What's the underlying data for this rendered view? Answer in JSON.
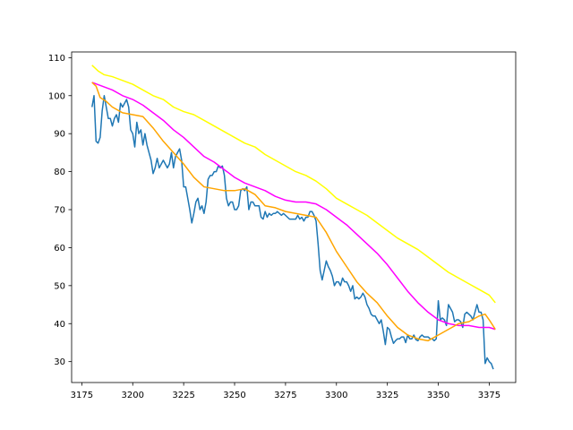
{
  "chart_data": {
    "type": "line",
    "title": "",
    "xlabel": "",
    "ylabel": "",
    "xlim": [
      3170,
      3388
    ],
    "ylim": [
      24.5,
      111.5
    ],
    "grid": false,
    "legend": "none",
    "x_ticks": [
      3175,
      3200,
      3225,
      3250,
      3275,
      3300,
      3325,
      3350,
      3375
    ],
    "y_ticks": [
      30,
      40,
      50,
      60,
      70,
      80,
      90,
      100,
      110
    ],
    "series": [
      {
        "color": "#1f77b4",
        "points": [
          [
            3180,
            97
          ],
          [
            3181,
            100
          ],
          [
            3182,
            88
          ],
          [
            3183,
            87.5
          ],
          [
            3184,
            89
          ],
          [
            3185,
            96
          ],
          [
            3186,
            100
          ],
          [
            3187,
            97
          ],
          [
            3188,
            94
          ],
          [
            3189,
            94
          ],
          [
            3190,
            92
          ],
          [
            3191,
            94
          ],
          [
            3192,
            95
          ],
          [
            3193,
            93
          ],
          [
            3194,
            98
          ],
          [
            3195,
            97
          ],
          [
            3196,
            98
          ],
          [
            3197,
            99
          ],
          [
            3198,
            97
          ],
          [
            3199,
            91
          ],
          [
            3200,
            90
          ],
          [
            3201,
            86.5
          ],
          [
            3202,
            93
          ],
          [
            3203,
            90
          ],
          [
            3204,
            91
          ],
          [
            3205,
            87
          ],
          [
            3206,
            90
          ],
          [
            3207,
            87
          ],
          [
            3208,
            85
          ],
          [
            3209,
            83
          ],
          [
            3210,
            79.5
          ],
          [
            3211,
            81
          ],
          [
            3212,
            83.5
          ],
          [
            3213,
            81
          ],
          [
            3214,
            82
          ],
          [
            3215,
            83
          ],
          [
            3216,
            82
          ],
          [
            3217,
            81
          ],
          [
            3218,
            82
          ],
          [
            3219,
            85
          ],
          [
            3220,
            81
          ],
          [
            3221,
            84
          ],
          [
            3222,
            85
          ],
          [
            3223,
            86
          ],
          [
            3224,
            83
          ],
          [
            3225,
            76
          ],
          [
            3226,
            76
          ],
          [
            3227,
            73
          ],
          [
            3228,
            70
          ],
          [
            3229,
            66.5
          ],
          [
            3230,
            69
          ],
          [
            3231,
            72
          ],
          [
            3232,
            73
          ],
          [
            3233,
            70
          ],
          [
            3234,
            71
          ],
          [
            3235,
            69
          ],
          [
            3236,
            72
          ],
          [
            3237,
            78
          ],
          [
            3238,
            79
          ],
          [
            3239,
            79
          ],
          [
            3240,
            80
          ],
          [
            3241,
            80
          ],
          [
            3242,
            81.5
          ],
          [
            3243,
            81
          ],
          [
            3244,
            81.5
          ],
          [
            3245,
            79
          ],
          [
            3246,
            73
          ],
          [
            3247,
            71
          ],
          [
            3248,
            72
          ],
          [
            3249,
            72
          ],
          [
            3250,
            70
          ],
          [
            3251,
            70
          ],
          [
            3252,
            71
          ],
          [
            3253,
            75
          ],
          [
            3254,
            75.5
          ],
          [
            3255,
            75
          ],
          [
            3256,
            76
          ],
          [
            3257,
            70
          ],
          [
            3258,
            72
          ],
          [
            3259,
            72
          ],
          [
            3260,
            71
          ],
          [
            3261,
            71
          ],
          [
            3262,
            71
          ],
          [
            3263,
            68
          ],
          [
            3264,
            67.5
          ],
          [
            3265,
            69.5
          ],
          [
            3266,
            68
          ],
          [
            3267,
            69
          ],
          [
            3268,
            68.5
          ],
          [
            3269,
            69
          ],
          [
            3270,
            69
          ],
          [
            3271,
            69.5
          ],
          [
            3272,
            69
          ],
          [
            3273,
            68.5
          ],
          [
            3274,
            69
          ],
          [
            3275,
            68.5
          ],
          [
            3276,
            68
          ],
          [
            3277,
            67.5
          ],
          [
            3278,
            67.5
          ],
          [
            3279,
            67.5
          ],
          [
            3280,
            67.5
          ],
          [
            3281,
            68.5
          ],
          [
            3282,
            67.5
          ],
          [
            3283,
            68
          ],
          [
            3284,
            67
          ],
          [
            3285,
            68
          ],
          [
            3286,
            68
          ],
          [
            3287,
            69.5
          ],
          [
            3288,
            69.5
          ],
          [
            3289,
            68.5
          ],
          [
            3290,
            67
          ],
          [
            3291,
            61
          ],
          [
            3292,
            54
          ],
          [
            3293,
            51.5
          ],
          [
            3294,
            54
          ],
          [
            3295,
            56.5
          ],
          [
            3296,
            55
          ],
          [
            3297,
            54
          ],
          [
            3298,
            52.5
          ],
          [
            3299,
            50
          ],
          [
            3300,
            51
          ],
          [
            3301,
            51
          ],
          [
            3302,
            50
          ],
          [
            3303,
            52
          ],
          [
            3304,
            51
          ],
          [
            3305,
            51
          ],
          [
            3306,
            50
          ],
          [
            3307,
            48.5
          ],
          [
            3308,
            50
          ],
          [
            3309,
            46.5
          ],
          [
            3310,
            47
          ],
          [
            3311,
            46.5
          ],
          [
            3312,
            47
          ],
          [
            3313,
            48
          ],
          [
            3314,
            47
          ],
          [
            3315,
            45
          ],
          [
            3316,
            44
          ],
          [
            3317,
            42.5
          ],
          [
            3318,
            42
          ],
          [
            3319,
            42
          ],
          [
            3320,
            41
          ],
          [
            3321,
            40
          ],
          [
            3322,
            41
          ],
          [
            3323,
            38
          ],
          [
            3324,
            34.5
          ],
          [
            3325,
            39
          ],
          [
            3326,
            38.5
          ],
          [
            3327,
            36.5
          ],
          [
            3328,
            34.8
          ],
          [
            3329,
            35.5
          ],
          [
            3330,
            36
          ],
          [
            3331,
            36
          ],
          [
            3332,
            36.5
          ],
          [
            3333,
            36.5
          ],
          [
            3334,
            35
          ],
          [
            3335,
            37
          ],
          [
            3336,
            36
          ],
          [
            3337,
            36
          ],
          [
            3338,
            37
          ],
          [
            3339,
            35.8
          ],
          [
            3340,
            35.5
          ],
          [
            3341,
            36.5
          ],
          [
            3342,
            37
          ],
          [
            3343,
            36.5
          ],
          [
            3344,
            36.5
          ],
          [
            3345,
            36.5
          ],
          [
            3346,
            36
          ],
          [
            3347,
            36
          ],
          [
            3348,
            35.5
          ],
          [
            3349,
            36
          ],
          [
            3350,
            46
          ],
          [
            3351,
            41
          ],
          [
            3352,
            41.5
          ],
          [
            3353,
            41
          ],
          [
            3354,
            39.5
          ],
          [
            3355,
            45
          ],
          [
            3356,
            44
          ],
          [
            3357,
            43
          ],
          [
            3358,
            40.5
          ],
          [
            3359,
            41
          ],
          [
            3360,
            41
          ],
          [
            3361,
            40.5
          ],
          [
            3362,
            39
          ],
          [
            3363,
            42.5
          ],
          [
            3364,
            43
          ],
          [
            3365,
            42.5
          ],
          [
            3366,
            42
          ],
          [
            3367,
            41
          ],
          [
            3368,
            43
          ],
          [
            3369,
            45
          ],
          [
            3370,
            43
          ],
          [
            3371,
            43
          ],
          [
            3372,
            41
          ],
          [
            3373,
            29.5
          ],
          [
            3374,
            31
          ],
          [
            3375,
            30
          ],
          [
            3376,
            29.5
          ],
          [
            3377,
            28
          ]
        ]
      },
      {
        "color": "#ffff00",
        "points": [
          [
            3180,
            108
          ],
          [
            3183,
            106.5
          ],
          [
            3186,
            105.5
          ],
          [
            3190,
            105
          ],
          [
            3195,
            104
          ],
          [
            3200,
            103
          ],
          [
            3205,
            101.5
          ],
          [
            3210,
            100
          ],
          [
            3215,
            99
          ],
          [
            3220,
            97
          ],
          [
            3225,
            95.8
          ],
          [
            3230,
            95
          ],
          [
            3235,
            93.5
          ],
          [
            3240,
            92
          ],
          [
            3245,
            90.5
          ],
          [
            3250,
            89
          ],
          [
            3255,
            87.5
          ],
          [
            3260,
            86.5
          ],
          [
            3265,
            84.5
          ],
          [
            3270,
            83
          ],
          [
            3275,
            81.5
          ],
          [
            3280,
            80
          ],
          [
            3285,
            79
          ],
          [
            3290,
            77.5
          ],
          [
            3295,
            75.5
          ],
          [
            3300,
            73
          ],
          [
            3305,
            71.5
          ],
          [
            3310,
            70
          ],
          [
            3315,
            68.5
          ],
          [
            3320,
            66.5
          ],
          [
            3325,
            64.5
          ],
          [
            3330,
            62.5
          ],
          [
            3335,
            61
          ],
          [
            3340,
            59.5
          ],
          [
            3345,
            57.5
          ],
          [
            3350,
            55.5
          ],
          [
            3355,
            53.5
          ],
          [
            3360,
            52
          ],
          [
            3365,
            50.5
          ],
          [
            3370,
            49
          ],
          [
            3375,
            47.5
          ],
          [
            3378,
            45.5
          ]
        ]
      },
      {
        "color": "#ff00ff",
        "points": [
          [
            3180,
            103.5
          ],
          [
            3185,
            102.5
          ],
          [
            3190,
            101.5
          ],
          [
            3195,
            100
          ],
          [
            3200,
            99
          ],
          [
            3205,
            97.5
          ],
          [
            3210,
            95.5
          ],
          [
            3215,
            93.5
          ],
          [
            3220,
            91
          ],
          [
            3225,
            89
          ],
          [
            3230,
            86.5
          ],
          [
            3235,
            84
          ],
          [
            3240,
            82.5
          ],
          [
            3245,
            80.5
          ],
          [
            3250,
            78.5
          ],
          [
            3255,
            77
          ],
          [
            3260,
            76
          ],
          [
            3265,
            75
          ],
          [
            3270,
            73.5
          ],
          [
            3275,
            72.5
          ],
          [
            3280,
            72
          ],
          [
            3285,
            72
          ],
          [
            3290,
            71.5
          ],
          [
            3295,
            70
          ],
          [
            3300,
            68
          ],
          [
            3305,
            66
          ],
          [
            3310,
            63.5
          ],
          [
            3315,
            61
          ],
          [
            3320,
            58.5
          ],
          [
            3325,
            55.5
          ],
          [
            3330,
            52
          ],
          [
            3335,
            48.5
          ],
          [
            3340,
            45.5
          ],
          [
            3345,
            43
          ],
          [
            3350,
            41
          ],
          [
            3355,
            40
          ],
          [
            3360,
            39.5
          ],
          [
            3365,
            39.5
          ],
          [
            3370,
            39
          ],
          [
            3375,
            39
          ],
          [
            3378,
            38.5
          ]
        ]
      },
      {
        "color": "#ffa500",
        "points": [
          [
            3180,
            103.5
          ],
          [
            3182,
            102.5
          ],
          [
            3184,
            99.5
          ],
          [
            3187,
            98.5
          ],
          [
            3190,
            97
          ],
          [
            3195,
            95.5
          ],
          [
            3200,
            95
          ],
          [
            3205,
            94.5
          ],
          [
            3210,
            91.5
          ],
          [
            3215,
            88
          ],
          [
            3220,
            85
          ],
          [
            3225,
            82
          ],
          [
            3230,
            78.5
          ],
          [
            3235,
            76
          ],
          [
            3240,
            75.5
          ],
          [
            3245,
            75
          ],
          [
            3250,
            75
          ],
          [
            3255,
            75.5
          ],
          [
            3260,
            74
          ],
          [
            3265,
            71
          ],
          [
            3270,
            70.5
          ],
          [
            3275,
            69.5
          ],
          [
            3280,
            69
          ],
          [
            3285,
            68.5
          ],
          [
            3290,
            68
          ],
          [
            3295,
            64
          ],
          [
            3300,
            59
          ],
          [
            3305,
            55
          ],
          [
            3310,
            51
          ],
          [
            3315,
            48
          ],
          [
            3320,
            45.5
          ],
          [
            3325,
            42
          ],
          [
            3330,
            39
          ],
          [
            3335,
            37
          ],
          [
            3340,
            36
          ],
          [
            3345,
            35.5
          ],
          [
            3350,
            37
          ],
          [
            3355,
            38.5
          ],
          [
            3360,
            40
          ],
          [
            3365,
            40.5
          ],
          [
            3370,
            42
          ],
          [
            3373,
            42.5
          ],
          [
            3375,
            41
          ],
          [
            3378,
            38.5
          ]
        ]
      }
    ]
  }
}
